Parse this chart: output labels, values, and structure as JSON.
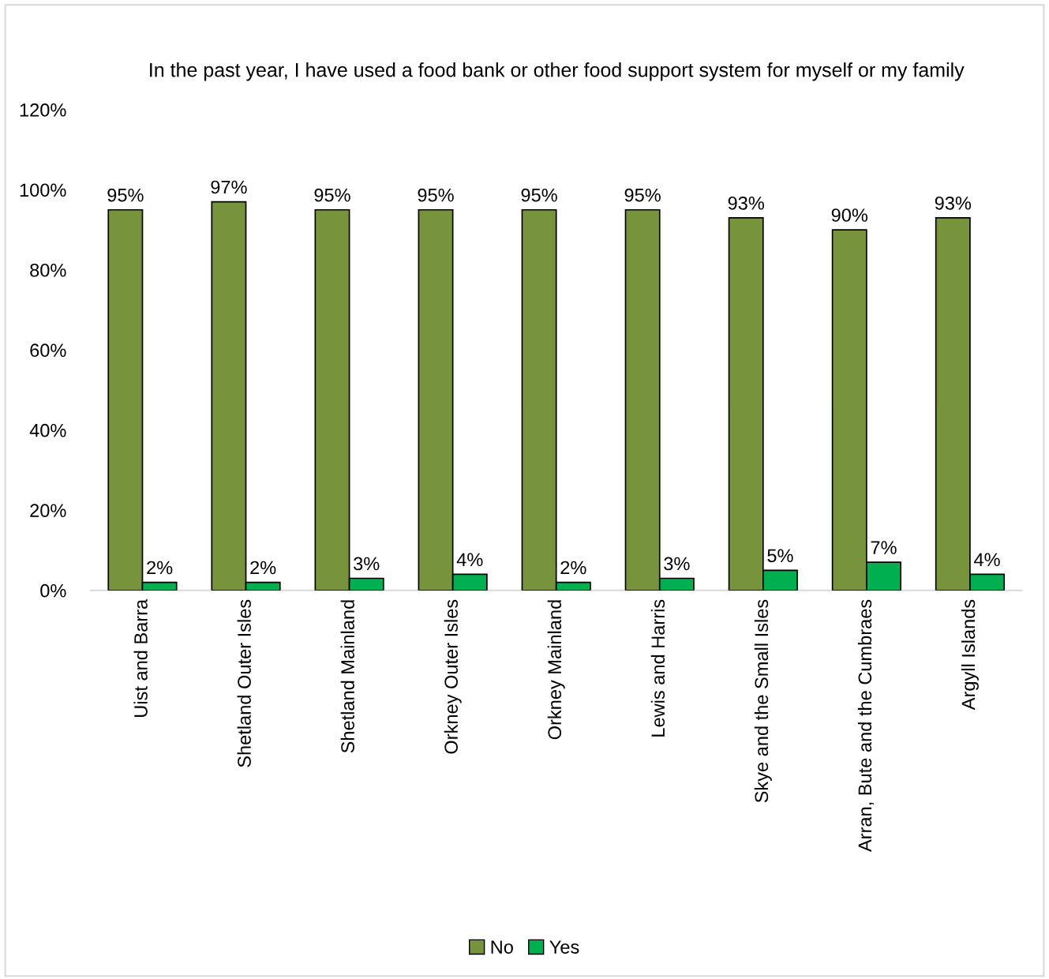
{
  "chart_data": {
    "type": "bar",
    "title": "In the past year, I have used a food bank or other food support system for myself or my family",
    "categories": [
      "Uist and Barra",
      "Shetland Outer Isles",
      "Shetland Mainland",
      "Orkney Outer Isles",
      "Orkney Mainland",
      "Lewis and Harris",
      "Skye and the Small Isles",
      "Arran, Bute and the Cumbraes",
      "Argyll Islands"
    ],
    "series": [
      {
        "name": "No",
        "color": "#77933c",
        "values": [
          95,
          97,
          95,
          95,
          95,
          95,
          93,
          90,
          93
        ],
        "value_labels": [
          "95%",
          "97%",
          "95%",
          "95%",
          "95%",
          "95%",
          "93%",
          "90%",
          "93%"
        ]
      },
      {
        "name": "Yes",
        "color": "#00b050",
        "values": [
          2,
          2,
          3,
          4,
          2,
          3,
          5,
          7,
          4
        ],
        "value_labels": [
          "2%",
          "2%",
          "3%",
          "4%",
          "2%",
          "3%",
          "5%",
          "7%",
          "4%"
        ]
      }
    ],
    "ylim": [
      0,
      120
    ],
    "yticks": [
      {
        "value": 0,
        "label": "0%"
      },
      {
        "value": 20,
        "label": "20%"
      },
      {
        "value": 40,
        "label": "40%"
      },
      {
        "value": 60,
        "label": "60%"
      },
      {
        "value": 80,
        "label": "80%"
      },
      {
        "value": 100,
        "label": "100%"
      },
      {
        "value": 120,
        "label": "120%"
      }
    ],
    "grid": false,
    "legend": "bottom"
  }
}
